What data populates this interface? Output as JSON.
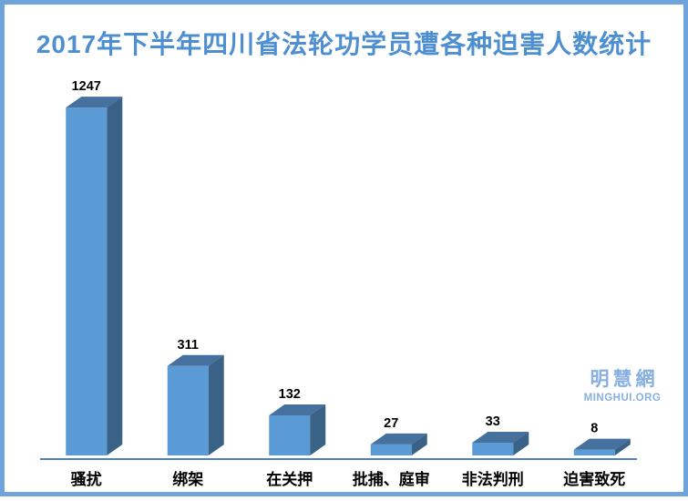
{
  "chart_data": {
    "type": "bar",
    "variant": "3d-column",
    "title": "2017年下半年四川省法轮功学员遭各种迫害人数统计",
    "categories": [
      "骚扰",
      "绑架",
      "在关押",
      "批捕、庭审",
      "非法判刑",
      "迫害致死"
    ],
    "values": [
      1247,
      311,
      132,
      27,
      33,
      8
    ],
    "xlabel": "",
    "ylabel": "",
    "grid": false,
    "legend": false,
    "value_labels_shown": true,
    "baseline_axis": "x"
  },
  "watermark": {
    "line1": "明慧網",
    "line2": "MINGHUI.ORG"
  },
  "colors": {
    "background": "#FFFFFF",
    "frame_border": "#6FA3DC",
    "title": "#4E8FD2",
    "bar_front": "#5B9BD5",
    "bar_top": "#46719E",
    "bar_side": "#3A6186",
    "axis_line": "#4F81BD",
    "value_label": "#000000",
    "category_label": "#000000",
    "watermark": "#87AFE0"
  }
}
